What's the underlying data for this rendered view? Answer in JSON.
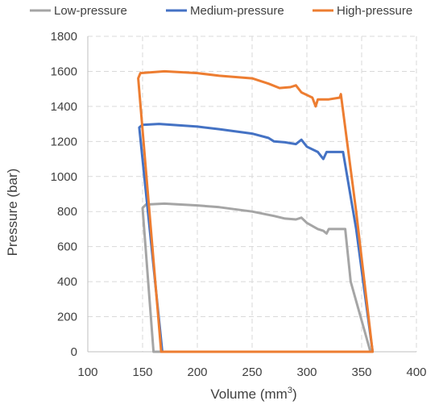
{
  "chart_data": {
    "type": "line",
    "title": "",
    "xlabel": "Volume (mm",
    "xlabel_sup": "3",
    "xlabel_tail": ")",
    "ylabel": "Pressure (bar)",
    "xlim": [
      100,
      400
    ],
    "ylim": [
      0,
      1800
    ],
    "xticks": [
      100,
      150,
      200,
      250,
      300,
      350,
      400
    ],
    "yticks": [
      0,
      200,
      400,
      600,
      800,
      1000,
      1200,
      1400,
      1600,
      1800
    ],
    "grid": "dashed vertical and horizontal",
    "legend_position": "top",
    "series": [
      {
        "name": "Low-pressure",
        "color": "#a5a5a5",
        "points": [
          [
            160,
            0
          ],
          [
            150,
            820
          ],
          [
            153,
            840
          ],
          [
            170,
            845
          ],
          [
            200,
            835
          ],
          [
            220,
            825
          ],
          [
            250,
            800
          ],
          [
            270,
            775
          ],
          [
            280,
            760
          ],
          [
            290,
            755
          ],
          [
            295,
            765
          ],
          [
            300,
            735
          ],
          [
            310,
            700
          ],
          [
            315,
            690
          ],
          [
            318,
            675
          ],
          [
            320,
            700
          ],
          [
            330,
            700
          ],
          [
            335,
            700
          ],
          [
            340,
            400
          ],
          [
            358,
            0
          ],
          [
            340,
            0
          ],
          [
            300,
            0
          ],
          [
            250,
            0
          ],
          [
            200,
            0
          ],
          [
            160,
            0
          ]
        ]
      },
      {
        "name": "Medium-pressure",
        "color": "#4472c4",
        "points": [
          [
            168,
            0
          ],
          [
            147,
            1280
          ],
          [
            150,
            1295
          ],
          [
            165,
            1300
          ],
          [
            200,
            1285
          ],
          [
            220,
            1270
          ],
          [
            250,
            1245
          ],
          [
            265,
            1220
          ],
          [
            270,
            1200
          ],
          [
            280,
            1195
          ],
          [
            290,
            1185
          ],
          [
            295,
            1210
          ],
          [
            300,
            1170
          ],
          [
            310,
            1140
          ],
          [
            315,
            1100
          ],
          [
            318,
            1140
          ],
          [
            325,
            1140
          ],
          [
            333,
            1140
          ],
          [
            345,
            700
          ],
          [
            360,
            0
          ],
          [
            340,
            0
          ],
          [
            300,
            0
          ],
          [
            250,
            0
          ],
          [
            200,
            0
          ],
          [
            168,
            0
          ]
        ]
      },
      {
        "name": "High-pressure",
        "color": "#ed7d31",
        "points": [
          [
            167,
            0
          ],
          [
            146,
            1560
          ],
          [
            148,
            1590
          ],
          [
            170,
            1600
          ],
          [
            200,
            1590
          ],
          [
            220,
            1575
          ],
          [
            250,
            1560
          ],
          [
            265,
            1530
          ],
          [
            275,
            1505
          ],
          [
            285,
            1510
          ],
          [
            290,
            1520
          ],
          [
            295,
            1480
          ],
          [
            305,
            1450
          ],
          [
            308,
            1400
          ],
          [
            310,
            1440
          ],
          [
            320,
            1440
          ],
          [
            330,
            1450
          ],
          [
            331,
            1470
          ],
          [
            345,
            800
          ],
          [
            360,
            0
          ],
          [
            340,
            0
          ],
          [
            300,
            0
          ],
          [
            250,
            0
          ],
          [
            200,
            0
          ],
          [
            167,
            0
          ]
        ]
      }
    ]
  }
}
